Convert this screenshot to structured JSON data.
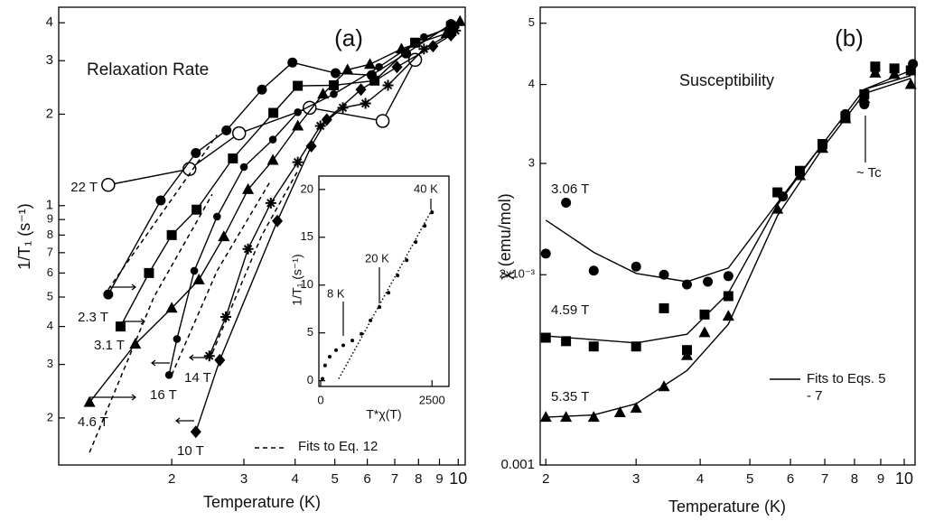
{
  "chart_data": [
    {
      "type": "line",
      "label": "(a)",
      "subtitle": "Relaxation Rate",
      "xlabel": "Temperature (K)",
      "ylabel": "1/T₁ (s⁻¹)",
      "xscale": "log",
      "yscale": "log",
      "grid": false,
      "xlim": [
        1.06,
        10.4
      ],
      "ylim": [
        0.14,
        4.5
      ],
      "xticks": [
        2,
        3,
        4,
        5,
        6,
        7,
        8,
        9,
        10
      ],
      "yticks": [
        {
          "value": 0.2,
          "label": "2"
        },
        {
          "value": 0.3,
          "label": "3"
        },
        {
          "value": 0.4,
          "label": "4"
        },
        {
          "value": 0.5,
          "label": "5"
        },
        {
          "value": 0.6,
          "label": "6"
        },
        {
          "value": 0.7,
          "label": "7"
        },
        {
          "value": 0.8,
          "label": "8"
        },
        {
          "value": 0.9,
          "label": "9"
        },
        1,
        2,
        3,
        4
      ],
      "series": [
        {
          "name": "22 T",
          "color": "#000",
          "marker": "open-circle",
          "style": "solid",
          "x": [
            1.4,
            2.21,
            2.92,
            4.34,
            6.54,
            7.85
          ],
          "values": [
            1.17,
            1.32,
            1.73,
            2.1,
            1.9,
            3.02
          ]
        },
        {
          "name": "2.3 T",
          "color": "#000",
          "marker": "circle",
          "style": "solid",
          "x": [
            1.4,
            1.88,
            2.29,
            2.72,
            3.32,
            3.94,
            5.02,
            6.15,
            7.46,
            9.6
          ],
          "values": [
            0.51,
            1.04,
            1.49,
            1.77,
            2.41,
            2.96,
            2.73,
            2.69,
            3.17,
            3.96
          ]
        },
        {
          "name": "3.1 T",
          "color": "#000",
          "marker": "square",
          "style": "solid",
          "x": [
            1.5,
            1.76,
            2.0,
            2.3,
            2.82,
            3.54,
            4.06,
            4.97,
            6.25,
            7.85,
            9.6
          ],
          "values": [
            0.4,
            0.6,
            0.8,
            0.97,
            1.43,
            2.02,
            2.48,
            2.49,
            2.58,
            3.44,
            3.9
          ]
        },
        {
          "name": "4.6 T",
          "color": "#000",
          "marker": "triangle",
          "style": "solid",
          "x": [
            1.26,
            1.63,
            2.0,
            2.33,
            2.68,
            3.07,
            3.53,
            4.06,
            4.68,
            5.37,
            6.09,
            7.27,
            9.36,
            10.1
          ],
          "values": [
            0.225,
            0.35,
            0.46,
            0.57,
            0.79,
            1.13,
            1.41,
            1.83,
            2.33,
            2.8,
            2.92,
            3.28,
            3.69,
            4.04
          ]
        },
        {
          "name": "16 T",
          "color": "#000",
          "marker": "dot",
          "style": "solid",
          "x": [
            1.97,
            2.06,
            2.27,
            2.58,
            3.0,
            3.53,
            4.06,
            4.97,
            6.41,
            8.25,
            9.85
          ],
          "values": [
            0.277,
            0.364,
            0.61,
            0.92,
            1.34,
            1.65,
            2.03,
            2.33,
            2.86,
            3.59,
            3.9
          ]
        },
        {
          "name": "14 T",
          "color": "#000",
          "marker": "star",
          "style": "solid",
          "x": [
            2.47,
            2.71,
            3.07,
            3.49,
            4.06,
            4.61,
            5.23,
            5.94,
            6.74,
            8.25,
            9.85
          ],
          "values": [
            0.32,
            0.43,
            0.72,
            1.02,
            1.39,
            1.83,
            2.1,
            2.17,
            2.49,
            3.28,
            3.77
          ]
        },
        {
          "name": "10 T",
          "color": "#000",
          "marker": "diamond",
          "style": "solid",
          "x": [
            2.29,
            2.62,
            3.62,
            4.38,
            4.78,
            5.79,
            7.09,
            8.68,
            9.6
          ],
          "values": [
            0.18,
            0.31,
            0.89,
            1.57,
            1.92,
            2.41,
            2.86,
            3.35,
            3.64
          ]
        },
        {
          "name": "Fits to  Eq. 12",
          "color": "#000",
          "style": "dashed",
          "x": [
            1.26,
            1.81,
            2.51,
            null,
            1.4,
            2.58,
            null,
            2.0,
            2.58,
            3.49,
            null,
            2.47,
            3.32,
            4.06
          ],
          "values": [
            0.154,
            0.5,
            1.09,
            null,
            0.53,
            1.71,
            null,
            0.277,
            0.61,
            1.21,
            null,
            0.31,
            0.8,
            1.3
          ]
        }
      ]
    },
    {
      "type": "scatter",
      "xlabel": "T*χ(T)",
      "ylabel": "1/T₁ (s⁻¹)",
      "annotations": [
        "8 K",
        "20 K",
        "40 K"
      ],
      "grid": false,
      "xlim": [
        -40,
        2880
      ],
      "ylim": [
        -0.6,
        21.4
      ],
      "xticks": [
        0,
        2500
      ],
      "yticks": [
        0,
        5,
        10,
        15,
        20
      ],
      "series": [
        {
          "color": "#000",
          "marker": "tiny",
          "style": "none",
          "x": [
            41,
            100,
            203,
            346,
            508,
            711,
            915,
            1118,
            1321,
            1524,
            1728,
            1931,
            2134,
            2337,
            2500
          ],
          "values": [
            0.2,
            1.6,
            2.5,
            3.2,
            3.7,
            4.2,
            4.9,
            6.3,
            7.7,
            9.2,
            11.0,
            12.6,
            14.5,
            16.2,
            17.6
          ]
        },
        {
          "color": "#000",
          "style": "dotted",
          "x": [
            407,
            2500
          ],
          "values": [
            0.2,
            17.9
          ]
        }
      ]
    },
    {
      "type": "line",
      "label": "(b)",
      "subtitle": "Susceptibility",
      "xlabel": "Temperature (K)",
      "ylabel": "χ (emu/mol)",
      "annotations": [
        "~ Tc"
      ],
      "xscale": "log",
      "yscale": "log",
      "grid": false,
      "xlim": [
        1.95,
        10.5
      ],
      "ylim": [
        0.001,
        0.0053
      ],
      "xticks": [
        2,
        3,
        4,
        5,
        6,
        7,
        8,
        9,
        10
      ],
      "yticks": [
        0.001,
        {
          "value": 0.002,
          "label": "2x10⁻³"
        },
        {
          "value": 0.003,
          "label": "3"
        },
        {
          "value": 0.004,
          "label": "4"
        },
        {
          "value": 0.005,
          "label": "5"
        }
      ],
      "series": [
        {
          "name": "3.06 T",
          "color": "#000",
          "marker": "circle",
          "style": "none",
          "x": [
            2.0,
            2.19,
            2.48,
            3.0,
            3.4,
            3.77,
            4.14,
            4.54,
            5.8,
            6.26,
            6.93,
            7.68,
            8.36,
            8.78,
            9.57,
            10.4
          ],
          "values": [
            0.00216,
            0.0026,
            0.00203,
            0.00206,
            0.002,
            0.00193,
            0.00195,
            0.00199,
            0.00266,
            0.00292,
            0.00322,
            0.00359,
            0.00372,
            0.00423,
            0.00423,
            0.00431
          ]
        },
        {
          "name": "4.59 T",
          "color": "#000",
          "marker": "square",
          "style": "none",
          "x": [
            2.0,
            2.19,
            2.48,
            3.0,
            3.4,
            3.77,
            4.08,
            4.54,
            5.66,
            6.26,
            6.93,
            7.68,
            8.36,
            8.78,
            9.57,
            10.3
          ],
          "values": [
            0.00159,
            0.00157,
            0.00154,
            0.00154,
            0.00177,
            0.00152,
            0.00173,
            0.00185,
            0.0027,
            0.00292,
            0.00322,
            0.00356,
            0.00386,
            0.00427,
            0.00424,
            0.00421
          ]
        },
        {
          "name": "5.35 T",
          "color": "#000",
          "marker": "triangle",
          "style": "none",
          "x": [
            2.0,
            2.19,
            2.48,
            2.79,
            3.0,
            3.4,
            3.77,
            4.08,
            4.54,
            5.66,
            6.26,
            6.93,
            7.68,
            8.36,
            8.78,
            9.57,
            10.3
          ],
          "values": [
            0.00119,
            0.00119,
            0.00119,
            0.00121,
            0.00123,
            0.00133,
            0.00149,
            0.00162,
            0.00172,
            0.00254,
            0.00287,
            0.00317,
            0.00353,
            0.0038,
            0.00417,
            0.00415,
            0.004
          ]
        },
        {
          "name": "Fits to Eqs. 5 - 7",
          "color": "#000",
          "style": "solid",
          "x": [
            2.0,
            2.48,
            3.0,
            3.77,
            4.54,
            5.66,
            6.93,
            8.36,
            10.3,
            null,
            2.0,
            3.0,
            3.77,
            4.54,
            5.66,
            6.93,
            8.36,
            10.3,
            null,
            2.0,
            2.48,
            3.0,
            3.77,
            4.54,
            5.66,
            6.93,
            8.36,
            10.3
          ],
          "values": [
            0.00244,
            0.00217,
            0.00201,
            0.00195,
            0.00205,
            0.0026,
            0.00322,
            0.00393,
            0.00421,
            null,
            0.0016,
            0.00156,
            0.00161,
            0.00187,
            0.00258,
            0.00322,
            0.00393,
            0.00413,
            null,
            0.00119,
            0.0012,
            0.00125,
            0.00141,
            0.00167,
            0.00248,
            0.00317,
            0.00387,
            0.00409
          ]
        }
      ]
    }
  ]
}
